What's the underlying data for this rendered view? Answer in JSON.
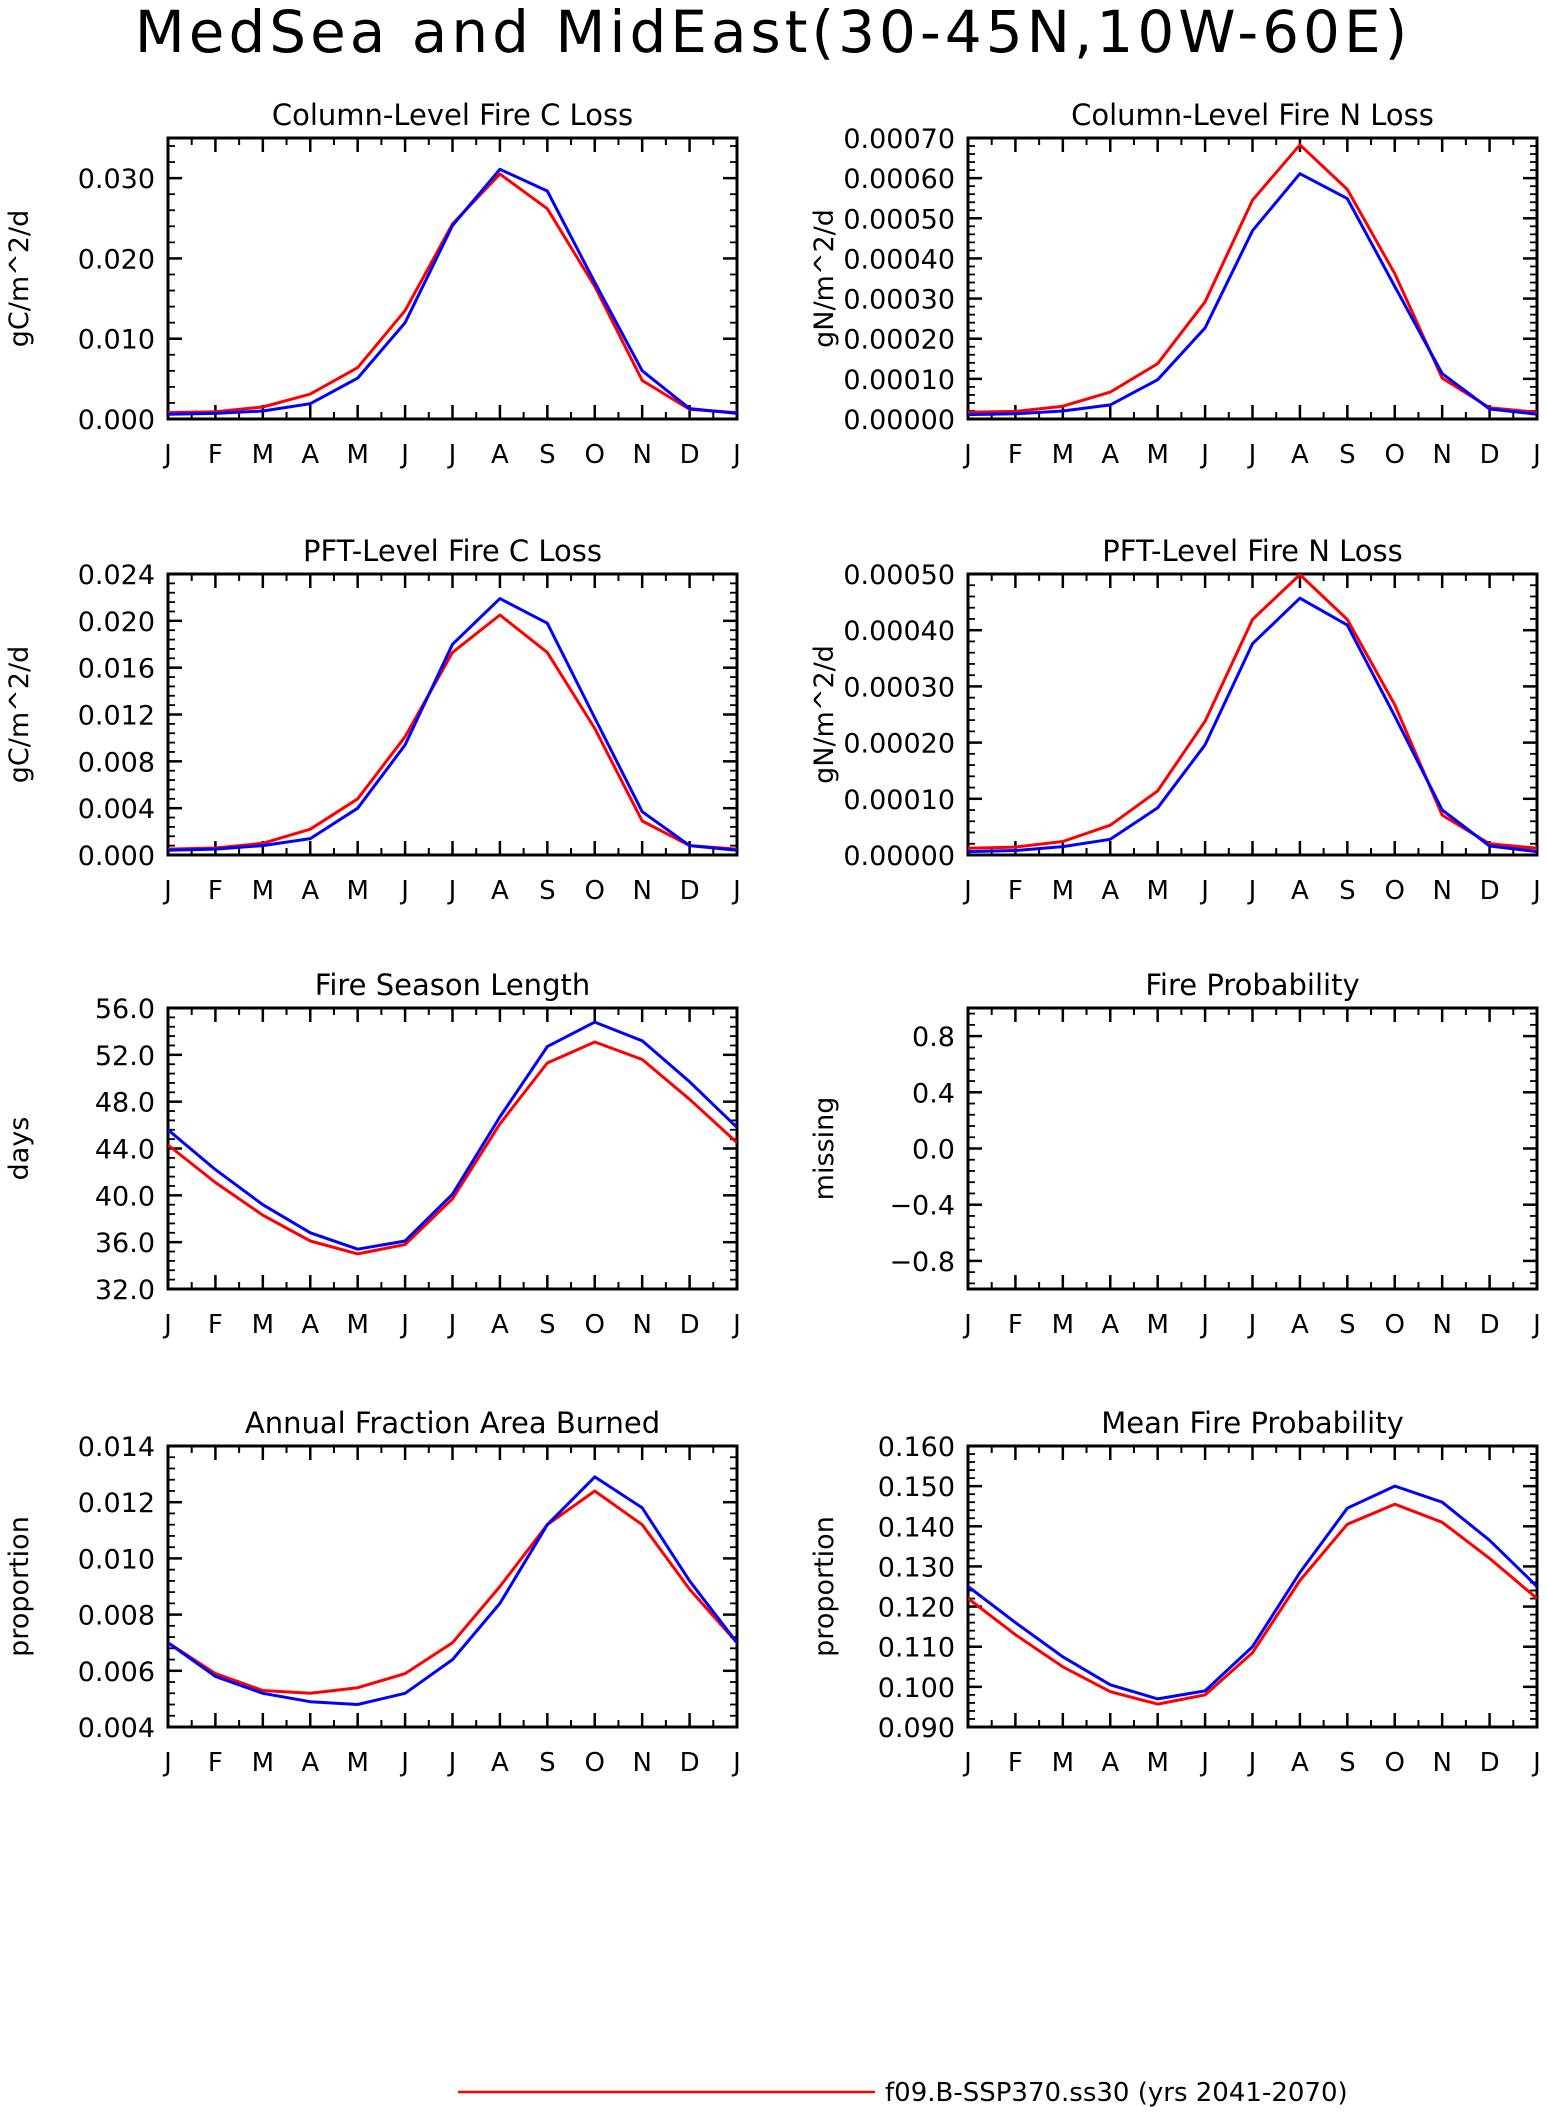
{
  "title": "MedSea and MidEast(30-45N,10W-60E)",
  "legend": {
    "entries": [
      {
        "label": "f09.B-SSP370.ss30 (yrs 2041-2070)",
        "color": "#ff0000"
      }
    ]
  },
  "series_colors": [
    "#ff0000",
    "#0000ff"
  ],
  "chart_data": [
    {
      "type": "line",
      "title": "Column-Level Fire C Loss",
      "ylabel": "gC/m^2/d",
      "x": [
        "J",
        "F",
        "M",
        "A",
        "M",
        "J",
        "J",
        "A",
        "S",
        "O",
        "N",
        "D",
        "J"
      ],
      "ylim": [
        0,
        0.035
      ],
      "yticks": [
        0,
        0.01,
        0.02,
        0.03
      ],
      "ytick_labels": [
        "0.000",
        "0.010",
        "0.020",
        "0.030"
      ],
      "series": [
        {
          "color": "#ff0000",
          "values": [
            0.0008,
            0.0009,
            0.0015,
            0.0031,
            0.0064,
            0.0135,
            0.0243,
            0.0305,
            0.0262,
            0.0165,
            0.0048,
            0.0012,
            0.0008
          ]
        },
        {
          "color": "#0000ff",
          "values": [
            0.0006,
            0.0007,
            0.001,
            0.0019,
            0.0051,
            0.012,
            0.0241,
            0.0311,
            0.0284,
            0.017,
            0.006,
            0.0013,
            0.0007
          ]
        }
      ]
    },
    {
      "type": "line",
      "title": "Column-Level Fire N Loss",
      "ylabel": "gN/m^2/d",
      "x": [
        "J",
        "F",
        "M",
        "A",
        "M",
        "J",
        "J",
        "A",
        "S",
        "O",
        "N",
        "D",
        "J"
      ],
      "ylim": [
        0,
        0.0007
      ],
      "yticks": [
        0,
        0.0001,
        0.0002,
        0.0003,
        0.0004,
        0.0005,
        0.0006,
        0.0007
      ],
      "ytick_labels": [
        "0.00000",
        "0.00010",
        "0.00020",
        "0.00030",
        "0.00040",
        "0.00050",
        "0.00060",
        "0.00070"
      ],
      "series": [
        {
          "color": "#ff0000",
          "values": [
            1.7e-05,
            1.9e-05,
            3.2e-05,
            6.7e-05,
            0.000138,
            0.000292,
            0.000545,
            0.000683,
            0.000572,
            0.000362,
            0.000102,
            2.8e-05,
            1.7e-05
          ]
        },
        {
          "color": "#0000ff",
          "values": [
            1.1e-05,
            1.3e-05,
            2e-05,
            3.5e-05,
            9.8e-05,
            0.000227,
            0.000469,
            0.000611,
            0.000549,
            0.00033,
            0.000113,
            2.5e-05,
            1.2e-05
          ]
        }
      ]
    },
    {
      "type": "line",
      "title": "PFT-Level Fire C Loss",
      "ylabel": "gC/m^2/d",
      "x": [
        "J",
        "F",
        "M",
        "A",
        "M",
        "J",
        "J",
        "A",
        "S",
        "O",
        "N",
        "D",
        "J"
      ],
      "ylim": [
        0,
        0.024
      ],
      "yticks": [
        0,
        0.004,
        0.008,
        0.012,
        0.016,
        0.02,
        0.024
      ],
      "ytick_labels": [
        "0.000",
        "0.004",
        "0.008",
        "0.012",
        "0.016",
        "0.020",
        "0.024"
      ],
      "series": [
        {
          "color": "#ff0000",
          "values": [
            0.0005,
            0.0006,
            0.001,
            0.0022,
            0.0048,
            0.0101,
            0.0173,
            0.0205,
            0.0173,
            0.0108,
            0.0029,
            0.0008,
            0.0005
          ]
        },
        {
          "color": "#0000ff",
          "values": [
            0.0004,
            0.0005,
            0.0008,
            0.0014,
            0.004,
            0.0094,
            0.018,
            0.0219,
            0.0198,
            0.0117,
            0.0037,
            0.0008,
            0.0004
          ]
        }
      ]
    },
    {
      "type": "line",
      "title": "PFT-Level Fire N Loss",
      "ylabel": "gN/m^2/d",
      "x": [
        "J",
        "F",
        "M",
        "A",
        "M",
        "J",
        "J",
        "A",
        "S",
        "O",
        "N",
        "D",
        "J"
      ],
      "ylim": [
        0,
        0.0005
      ],
      "yticks": [
        0,
        0.0001,
        0.0002,
        0.0003,
        0.0004,
        0.0005
      ],
      "ytick_labels": [
        "0.00000",
        "0.00010",
        "0.00020",
        "0.00030",
        "0.00040",
        "0.00050"
      ],
      "series": [
        {
          "color": "#ff0000",
          "values": [
            1.2e-05,
            1.4e-05,
            2.4e-05,
            5.3e-05,
            0.000114,
            0.000238,
            0.000419,
            0.000499,
            0.000419,
            0.000267,
            7.1e-05,
            2e-05,
            1.2e-05
          ]
        },
        {
          "color": "#0000ff",
          "values": [
            6e-06,
            8e-06,
            1.5e-05,
            2.8e-05,
            8.4e-05,
            0.000196,
            0.000376,
            0.000457,
            0.000409,
            0.000247,
            8e-05,
            1.6e-05,
            6e-06
          ]
        }
      ]
    },
    {
      "type": "line",
      "title": "Fire Season Length",
      "ylabel": "days",
      "x": [
        "J",
        "F",
        "M",
        "A",
        "M",
        "J",
        "J",
        "A",
        "S",
        "O",
        "N",
        "D",
        "J"
      ],
      "ylim": [
        32,
        56
      ],
      "yticks": [
        32,
        36,
        40,
        44,
        48,
        52,
        56
      ],
      "ytick_labels": [
        "32.0",
        "36.0",
        "40.0",
        "44.0",
        "48.0",
        "52.0",
        "56.0"
      ],
      "series": [
        {
          "color": "#ff0000",
          "values": [
            44.3,
            41.1,
            38.3,
            36.1,
            35.0,
            35.8,
            39.7,
            46.1,
            51.3,
            53.1,
            51.6,
            48.2,
            44.5
          ]
        },
        {
          "color": "#0000ff",
          "values": [
            45.6,
            42.2,
            39.2,
            36.8,
            35.4,
            36.1,
            40.1,
            46.7,
            52.7,
            54.8,
            53.2,
            49.7,
            45.8
          ]
        }
      ]
    },
    {
      "type": "line",
      "title": "Fire Probability",
      "ylabel": "missing",
      "x": [
        "J",
        "F",
        "M",
        "A",
        "M",
        "J",
        "J",
        "A",
        "S",
        "O",
        "N",
        "D",
        "J"
      ],
      "ylim": [
        -1,
        1
      ],
      "yticks": [
        -0.8,
        -0.4,
        0,
        0.4,
        0.8
      ],
      "ytick_labels": [
        "−0.8",
        "−0.4",
        "0.0",
        "0.4",
        "0.8"
      ],
      "series": []
    },
    {
      "type": "line",
      "title": "Annual Fraction Area Burned",
      "ylabel": "proportion",
      "x": [
        "J",
        "F",
        "M",
        "A",
        "M",
        "J",
        "J",
        "A",
        "S",
        "O",
        "N",
        "D",
        "J"
      ],
      "ylim": [
        0.004,
        0.014
      ],
      "yticks": [
        0.004,
        0.006,
        0.008,
        0.01,
        0.012,
        0.014
      ],
      "ytick_labels": [
        "0.004",
        "0.006",
        "0.008",
        "0.010",
        "0.012",
        "0.014"
      ],
      "series": [
        {
          "color": "#ff0000",
          "values": [
            0.007,
            0.0059,
            0.0053,
            0.0052,
            0.0054,
            0.0059,
            0.007,
            0.009,
            0.0112,
            0.0124,
            0.0112,
            0.0089,
            0.007
          ]
        },
        {
          "color": "#0000ff",
          "values": [
            0.007,
            0.0058,
            0.0052,
            0.0049,
            0.0048,
            0.0052,
            0.0064,
            0.0084,
            0.0112,
            0.0129,
            0.0118,
            0.0092,
            0.007
          ]
        }
      ]
    },
    {
      "type": "line",
      "title": "Mean Fire Probability",
      "ylabel": "proportion",
      "x": [
        "J",
        "F",
        "M",
        "A",
        "M",
        "J",
        "J",
        "A",
        "S",
        "O",
        "N",
        "D",
        "J"
      ],
      "ylim": [
        0.09,
        0.16
      ],
      "yticks": [
        0.09,
        0.1,
        0.11,
        0.12,
        0.13,
        0.14,
        0.15,
        0.16
      ],
      "ytick_labels": [
        "0.090",
        "0.100",
        "0.110",
        "0.120",
        "0.130",
        "0.140",
        "0.150",
        "0.160"
      ],
      "series": [
        {
          "color": "#ff0000",
          "values": [
            0.122,
            0.113,
            0.105,
            0.0988,
            0.0957,
            0.098,
            0.1085,
            0.1265,
            0.1405,
            0.1455,
            0.141,
            0.132,
            0.122
          ]
        },
        {
          "color": "#0000ff",
          "values": [
            0.125,
            0.116,
            0.1075,
            0.1005,
            0.097,
            0.099,
            0.11,
            0.1285,
            0.1445,
            0.15,
            0.146,
            0.1365,
            0.125
          ]
        }
      ]
    }
  ]
}
